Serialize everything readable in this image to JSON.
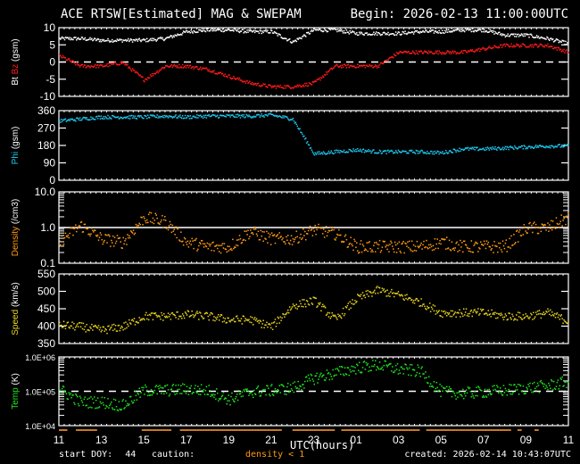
{
  "header": {
    "title": "ACE RTSW[Estimated] MAG & SWEPAM",
    "begin": "Begin: 2026-02-13 11:00:00UTC"
  },
  "footer": {
    "start_doy_label": "start DOY:",
    "start_doy": "44",
    "caution_label": "caution:",
    "caution_text": "density < 1",
    "created": "created: 2026-02-14 10:43:07UTC",
    "xaxis_label": "UTC(hours)"
  },
  "colors": {
    "background": "#000000",
    "axes": "#ffffff",
    "bt": "#ffffff",
    "bz": "#ff1a1a",
    "phi": "#1ec8f0",
    "density": "#ff9a14",
    "speed": "#e6d21e",
    "temp": "#1ee61e",
    "caution_bar": "#c8781e"
  },
  "chart_data": [
    {
      "type": "scatter",
      "title": "Bt / Bz (gsm)",
      "ylabel_parts": [
        "Bt",
        "Bz",
        "(gsm)"
      ],
      "ylim": [
        -10,
        10
      ],
      "yticks": [
        "10",
        "5",
        "0",
        "-5",
        "-10"
      ],
      "reference_line": 0,
      "x_hours": [
        0,
        1,
        2,
        3,
        4,
        5,
        6,
        7,
        8,
        9,
        10,
        11,
        12,
        13,
        14,
        15,
        16,
        17,
        18,
        19,
        20,
        21,
        22,
        23,
        24
      ],
      "series": [
        {
          "name": "Bt",
          "values": [
            7,
            7,
            6.5,
            6.5,
            6.5,
            7,
            9,
            9.5,
            9.5,
            9,
            9,
            6,
            9.5,
            9.5,
            8.5,
            8.5,
            8.5,
            9,
            9,
            9.5,
            9.5,
            8,
            8,
            7,
            5.5
          ]
        },
        {
          "name": "Bz",
          "values": [
            2,
            -1,
            -1,
            0,
            -5,
            -1,
            -1,
            -2,
            -4,
            -6,
            -7,
            -7,
            -6,
            -1,
            -1,
            -1,
            3,
            3,
            3,
            3,
            4,
            5,
            5,
            5,
            3
          ]
        }
      ]
    },
    {
      "type": "scatter",
      "title": "Phi (gsm)",
      "ylabel": "Phi (gsm)",
      "ylim": [
        0,
        360
      ],
      "yticks": [
        "360",
        "270",
        "180",
        "90",
        "0"
      ],
      "x_hours": [
        0,
        1,
        2,
        3,
        4,
        5,
        6,
        7,
        8,
        9,
        10,
        11,
        12,
        13,
        14,
        15,
        16,
        17,
        18,
        19,
        20,
        21,
        22,
        23,
        24
      ],
      "series": [
        {
          "name": "Phi",
          "values": [
            310,
            320,
            330,
            330,
            330,
            335,
            330,
            335,
            335,
            335,
            340,
            320,
            140,
            150,
            160,
            150,
            150,
            150,
            145,
            165,
            165,
            170,
            175,
            180,
            180
          ]
        }
      ]
    },
    {
      "type": "scatter",
      "title": "Density (/cm3)",
      "ylabel": "Density (/cm3)",
      "yscale": "log",
      "ylim": [
        0.1,
        10.0
      ],
      "yticks": [
        "10.0",
        "1.0",
        "0.1"
      ],
      "reference_line": 1.0,
      "x_hours": [
        0,
        1,
        2,
        3,
        4,
        5,
        6,
        7,
        8,
        9,
        10,
        11,
        12,
        13,
        14,
        15,
        16,
        17,
        18,
        19,
        20,
        21,
        22,
        23,
        24
      ],
      "series": [
        {
          "name": "Density",
          "values": [
            0.4,
            1.2,
            0.5,
            0.4,
            2.0,
            1.5,
            0.4,
            0.3,
            0.3,
            0.8,
            0.5,
            0.5,
            0.9,
            0.7,
            0.3,
            0.3,
            0.3,
            0.3,
            0.4,
            0.3,
            0.3,
            0.3,
            1.0,
            1.0,
            2.0
          ]
        }
      ]
    },
    {
      "type": "scatter",
      "title": "Speed (km/s)",
      "ylabel": "Speed (km/s)",
      "ylim": [
        350,
        550
      ],
      "yticks": [
        "550",
        "500",
        "450",
        "400",
        "350"
      ],
      "x_hours": [
        0,
        1,
        2,
        3,
        4,
        5,
        6,
        7,
        8,
        9,
        10,
        11,
        12,
        13,
        14,
        15,
        16,
        17,
        18,
        19,
        20,
        21,
        22,
        23,
        24
      ],
      "series": [
        {
          "name": "Speed",
          "values": [
            405,
            400,
            390,
            400,
            430,
            430,
            435,
            430,
            420,
            420,
            400,
            460,
            475,
            420,
            480,
            505,
            490,
            470,
            440,
            440,
            440,
            430,
            430,
            440,
            415
          ]
        }
      ]
    },
    {
      "type": "scatter",
      "title": "Temp (K)",
      "ylabel": "Temp (K)",
      "yscale": "log",
      "ylim": [
        10000,
        1000000
      ],
      "yticks": [
        "1.0E+06",
        "1.0E+05",
        "1.0E+04"
      ],
      "reference_line": 100000,
      "xlabel": "UTC(hours)",
      "xticks": [
        "11",
        "13",
        "15",
        "17",
        "19",
        "21",
        "23",
        "01",
        "03",
        "05",
        "07",
        "09",
        "11"
      ],
      "x_hours": [
        0,
        1,
        2,
        3,
        4,
        5,
        6,
        7,
        8,
        9,
        10,
        11,
        12,
        13,
        14,
        15,
        16,
        17,
        18,
        19,
        20,
        21,
        22,
        23,
        24
      ],
      "series": [
        {
          "name": "Temp",
          "values": [
            120000,
            50000,
            50000,
            40000,
            110000,
            110000,
            120000,
            110000,
            60000,
            100000,
            110000,
            130000,
            250000,
            350000,
            500000,
            600000,
            450000,
            400000,
            100000,
            90000,
            100000,
            110000,
            130000,
            150000,
            200000
          ]
        }
      ]
    }
  ]
}
